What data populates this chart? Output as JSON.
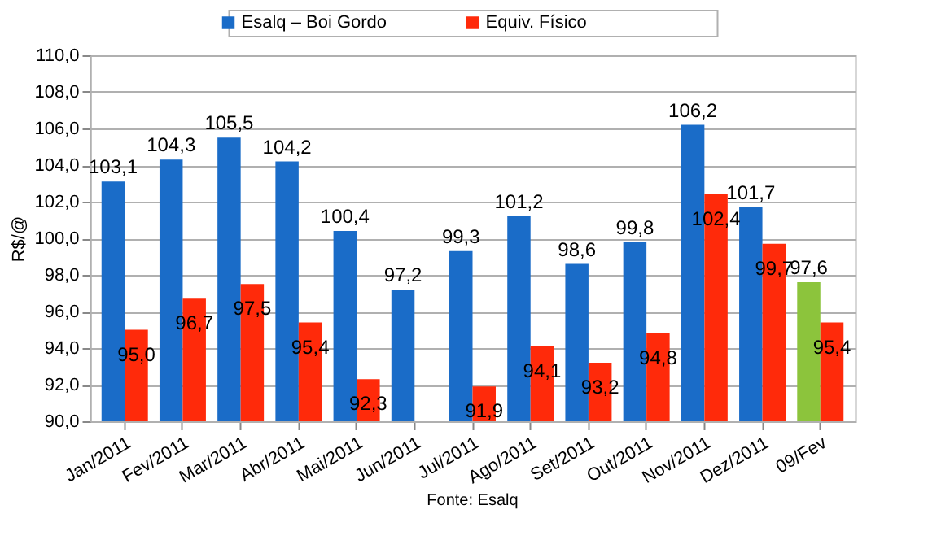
{
  "chart_data": {
    "type": "bar",
    "ylabel": "R$/@",
    "categories": [
      "Jan/2011",
      "Fev/2011",
      "Mar/2011",
      "Abr/2011",
      "Mai/2011",
      "Jun/2011",
      "Jul/2011",
      "Ago/2011",
      "Set/2011",
      "Out/2011",
      "Nov/2011",
      "Dez/2011",
      "09/Fev"
    ],
    "series": [
      {
        "name": "Esalq – Boi Gordo",
        "color": "#1a6cc8",
        "colors": [
          "#1a6cc8",
          "#1a6cc8",
          "#1a6cc8",
          "#1a6cc8",
          "#1a6cc8",
          "#1a6cc8",
          "#1a6cc8",
          "#1a6cc8",
          "#1a6cc8",
          "#1a6cc8",
          "#1a6cc8",
          "#1a6cc8",
          "#8cc43c"
        ],
        "values": [
          103.1,
          104.3,
          105.5,
          104.2,
          100.4,
          97.2,
          99.3,
          101.2,
          98.6,
          99.8,
          106.2,
          101.7,
          97.6
        ],
        "value_labels": [
          "103,1",
          "104,3",
          "105,5",
          "104,2",
          "100,4",
          "97,2",
          "99,3",
          "101,2",
          "98,6",
          "99,8",
          "106,2",
          "101,7",
          "97,6"
        ]
      },
      {
        "name": "Equiv. Físico",
        "color": "#ff2a0a",
        "values": [
          95.0,
          96.7,
          97.5,
          95.4,
          92.3,
          null,
          91.9,
          94.1,
          93.2,
          94.8,
          102.4,
          99.7,
          95.4
        ],
        "value_labels": [
          "95,0",
          "96,7",
          "97,5",
          "95,4",
          "92,3",
          null,
          "91,9",
          "94,1",
          "93,2",
          "94,8",
          "102,4",
          "99,7",
          "95,4"
        ]
      }
    ],
    "ylim": [
      90,
      110
    ],
    "yticks": [
      {
        "value": 90,
        "label": "90,0"
      },
      {
        "value": 92,
        "label": "92,0"
      },
      {
        "value": 94,
        "label": "94,0"
      },
      {
        "value": 96,
        "label": "96,0"
      },
      {
        "value": 98,
        "label": "98,0"
      },
      {
        "value": 100,
        "label": "100,0"
      },
      {
        "value": 102,
        "label": "102,0"
      },
      {
        "value": 104,
        "label": "104,0"
      },
      {
        "value": 106,
        "label": "106,0"
      },
      {
        "value": 108,
        "label": "108,0"
      },
      {
        "value": 110,
        "label": "110,0"
      }
    ],
    "grid": "y",
    "legend": "top",
    "data_labels": true,
    "annotations": [
      "Fonte: Esalq"
    ]
  }
}
